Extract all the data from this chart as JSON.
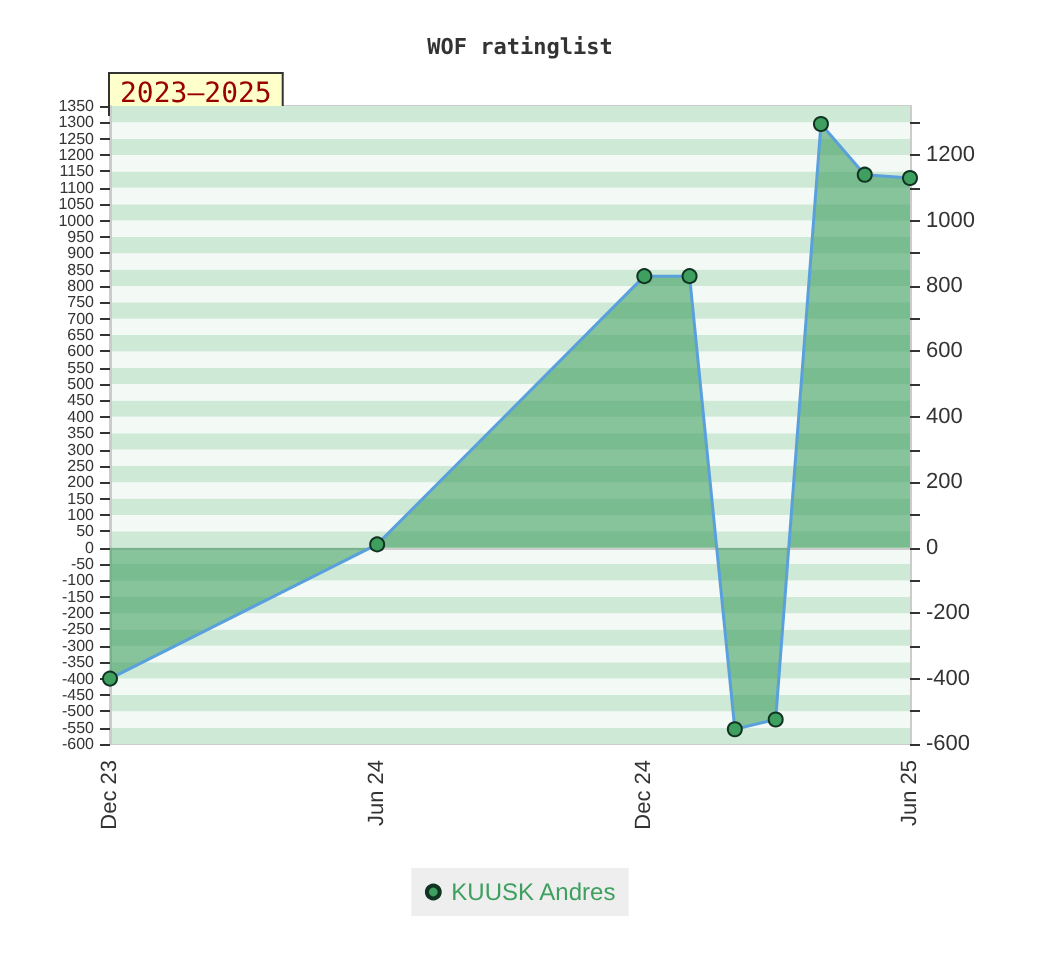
{
  "chart_data": {
    "type": "area",
    "title": "WOF ratinglist",
    "annotations": [
      "2023–2025"
    ],
    "x": [
      "2023-12",
      "2024-06",
      "2024-12",
      "2025-01",
      "2025-02",
      "2025-03",
      "2025-04",
      "2025-05",
      "2025-06"
    ],
    "series": [
      {
        "name": "KUUSK Andres",
        "color": "#3f9f5f",
        "values": [
          -400,
          10,
          830,
          830,
          -555,
          -525,
          1295,
          1140,
          1130
        ]
      }
    ],
    "xlim": [
      "2023-12",
      "2025-06"
    ],
    "xticks": [
      {
        "value": "2023-12",
        "label": "Dec 23"
      },
      {
        "value": "2024-06",
        "label": "Jun 24"
      },
      {
        "value": "2024-12",
        "label": "Dec 24"
      },
      {
        "value": "2025-06",
        "label": "Jun 25"
      }
    ],
    "ylim": [
      -600,
      1350
    ],
    "yticks": [
      -600,
      -550,
      -500,
      -450,
      -400,
      -350,
      -300,
      -250,
      -200,
      -150,
      -100,
      -50,
      0,
      50,
      100,
      150,
      200,
      250,
      300,
      350,
      400,
      450,
      500,
      550,
      600,
      650,
      700,
      750,
      800,
      850,
      900,
      950,
      1000,
      1050,
      1100,
      1150,
      1200,
      1250,
      1300,
      1350
    ],
    "y2lim": [
      -600,
      1350
    ],
    "y2ticks": [
      -600,
      {
        "value": -500,
        "label": null
      },
      -400,
      {
        "value": -300,
        "label": null
      },
      -200,
      {
        "value": -100,
        "label": null
      },
      0,
      {
        "value": 100,
        "label": null
      },
      200,
      {
        "value": 300,
        "label": null
      },
      400,
      {
        "value": 500,
        "label": null
      },
      600,
      {
        "value": 700,
        "label": null
      },
      800,
      {
        "value": 900,
        "label": null
      },
      1000,
      {
        "value": 1100,
        "label": null
      },
      1200,
      {
        "value": 1300,
        "label": null
      }
    ],
    "grid": "y",
    "legend": "bottom",
    "marker": "circle",
    "line_style": "solid"
  }
}
